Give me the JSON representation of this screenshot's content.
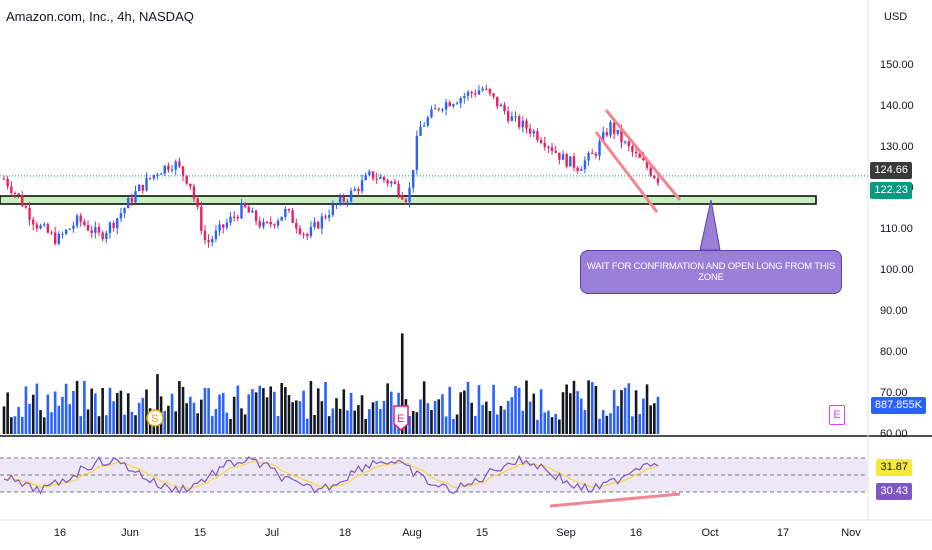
{
  "header": {
    "title": "Amazon.com, Inc., 4h, NASDAQ"
  },
  "chart_data": {
    "type": "candlestick",
    "currency": "USD",
    "price_axis_ticks": [
      "150.00",
      "140.00",
      "130.00",
      "120.00",
      "110.00",
      "100.00",
      "90.00",
      "80.00",
      "70.00",
      "60.00"
    ],
    "time_axis_ticks": [
      "16",
      "Jun",
      "15",
      "Jul",
      "18",
      "Aug",
      "15",
      "Sep",
      "16",
      "Oct",
      "17",
      "Nov"
    ],
    "last_price_label": "124.66",
    "current_price_label": "122.23",
    "volume_label": "887.855K",
    "rsi_label": "31.87",
    "rsi_ma_label": "30.43",
    "support_zone": {
      "low": 115.5,
      "high": 117.5
    },
    "dotted_price_line": 124.66,
    "candles_close_approx": [
      {
        "t": 0,
        "c": 122
      },
      {
        "t": 5,
        "c": 118
      },
      {
        "t": 12,
        "c": 111
      },
      {
        "t": 20,
        "c": 107
      },
      {
        "t": 28,
        "c": 112
      },
      {
        "t": 36,
        "c": 108
      },
      {
        "t": 42,
        "c": 112
      },
      {
        "t": 50,
        "c": 119
      },
      {
        "t": 58,
        "c": 124
      },
      {
        "t": 64,
        "c": 126
      },
      {
        "t": 70,
        "c": 121
      },
      {
        "t": 76,
        "c": 106
      },
      {
        "t": 82,
        "c": 110
      },
      {
        "t": 90,
        "c": 115
      },
      {
        "t": 98,
        "c": 110
      },
      {
        "t": 106,
        "c": 114
      },
      {
        "t": 114,
        "c": 108
      },
      {
        "t": 122,
        "c": 114
      },
      {
        "t": 130,
        "c": 118
      },
      {
        "t": 138,
        "c": 123
      },
      {
        "t": 146,
        "c": 121
      },
      {
        "t": 152,
        "c": 117
      },
      {
        "t": 156,
        "c": 134
      },
      {
        "t": 164,
        "c": 140
      },
      {
        "t": 172,
        "c": 142
      },
      {
        "t": 180,
        "c": 144
      },
      {
        "t": 186,
        "c": 140
      },
      {
        "t": 192,
        "c": 136
      },
      {
        "t": 198,
        "c": 134
      },
      {
        "t": 204,
        "c": 131
      },
      {
        "t": 210,
        "c": 127
      },
      {
        "t": 216,
        "c": 125
      },
      {
        "t": 222,
        "c": 128
      },
      {
        "t": 228,
        "c": 135
      },
      {
        "t": 234,
        "c": 130
      },
      {
        "t": 240,
        "c": 126
      },
      {
        "t": 246,
        "c": 122
      }
    ],
    "annotation": "WAIT FOR CONFIRMATION AND OPEN  LONG FROM THIS ZONE",
    "earnings_markers": [
      "S",
      "E",
      "E"
    ]
  },
  "colors": {
    "up": "#2962ff",
    "down": "#e91e63",
    "volume_up": "#2962ff",
    "volume_down": "#131722",
    "support_fill": "#c8eec0",
    "channel": "#f2858f",
    "rsi_line": "#7e57c2",
    "rsi_ma": "#f5d742",
    "rsi_bg": "#ede7f6",
    "price_badge_dark": "#3a3a3a",
    "price_badge_green": "#089981",
    "volume_badge": "#2962ff",
    "rsi_badge_yellow": "#f5e93a",
    "rsi_badge_purple": "#7e57c2"
  }
}
